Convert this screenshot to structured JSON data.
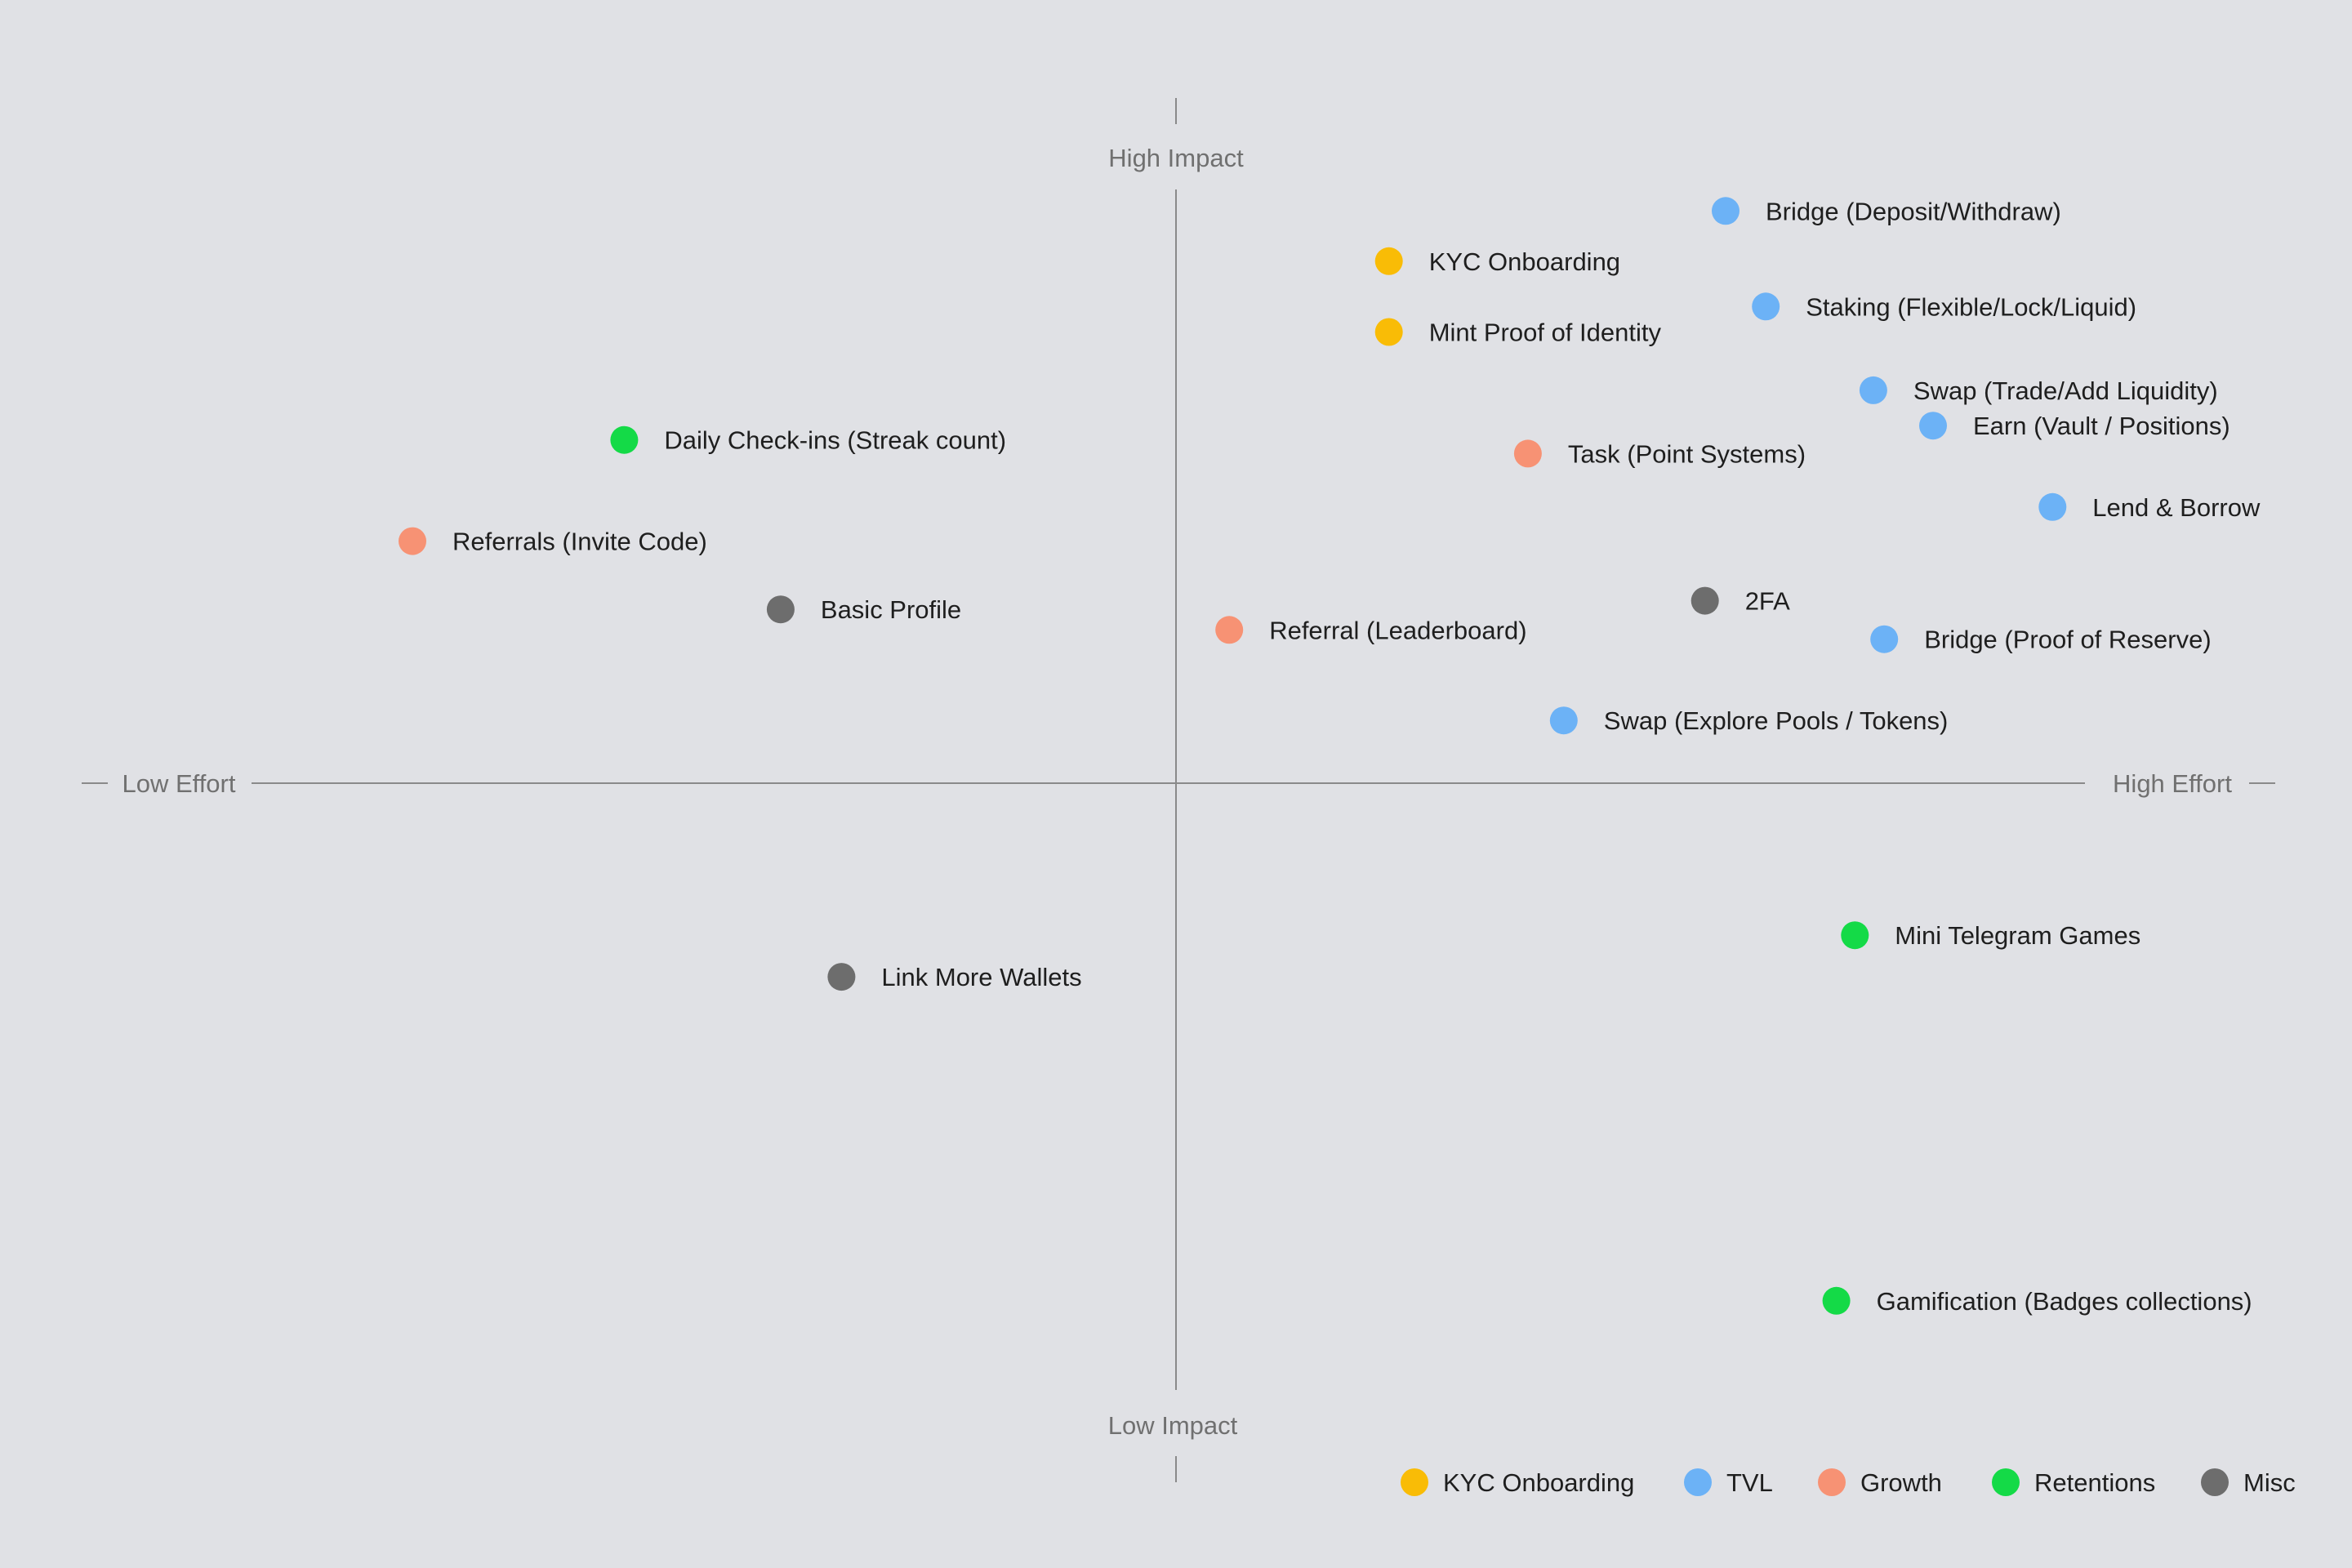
{
  "chart_data": {
    "type": "scatter",
    "title": "",
    "axes": {
      "x_low_label": "Low Effort",
      "x_high_label": "High Effort",
      "y_high_label": "High Impact",
      "y_low_label": "Low Impact",
      "xlim": [
        -100,
        100
      ],
      "ylim": [
        -100,
        100
      ]
    },
    "legend_position": "bottom-right",
    "categories": [
      {
        "key": "kyc",
        "name": "KYC Onboarding",
        "color": "#f9bc06"
      },
      {
        "key": "tvl",
        "name": "TVL",
        "color": "#6cb2f6"
      },
      {
        "key": "growth",
        "name": "Growth",
        "color": "#f79274"
      },
      {
        "key": "retention",
        "name": "Retentions",
        "color": "#14da47"
      },
      {
        "key": "misc",
        "name": "Misc",
        "color": "#6d6d6d"
      }
    ],
    "points": [
      {
        "label": "Bridge (Deposit/Withdraw)",
        "category": "tvl",
        "x": 50.6,
        "y": 92.2
      },
      {
        "label": "KYC Onboarding",
        "category": "kyc",
        "x": 19.6,
        "y": 84.1
      },
      {
        "label": "Staking (Flexible/Lock/Liquid)",
        "category": "tvl",
        "x": 54.3,
        "y": 76.8
      },
      {
        "label": "Mint Proof of Identity",
        "category": "kyc",
        "x": 19.6,
        "y": 72.7
      },
      {
        "label": "Swap (Trade/Add Liquidity)",
        "category": "tvl",
        "x": 64.2,
        "y": 63.3
      },
      {
        "label": "Daily Check-ins (Streak count)",
        "category": "retention",
        "x": -50.8,
        "y": 55.3
      },
      {
        "label": "Earn (Vault / Positions)",
        "category": "tvl",
        "x": 69.7,
        "y": 57.6
      },
      {
        "label": "Task (Point Systems)",
        "category": "growth",
        "x": 32.4,
        "y": 53.1
      },
      {
        "label": "Lend & Borrow",
        "category": "tvl",
        "x": 80.7,
        "y": 44.5
      },
      {
        "label": "Referrals (Invite Code)",
        "category": "growth",
        "x": -70.3,
        "y": 39.0
      },
      {
        "label": "2FA",
        "category": "misc",
        "x": 48.7,
        "y": 29.4
      },
      {
        "label": "Basic Profile",
        "category": "misc",
        "x": -36.4,
        "y": 28.0
      },
      {
        "label": "Referral (Leaderboard)",
        "category": "growth",
        "x": 4.9,
        "y": 24.7
      },
      {
        "label": "Bridge (Proof of Reserve)",
        "category": "tvl",
        "x": 65.2,
        "y": 23.2
      },
      {
        "label": "Swap (Explore Pools / Tokens)",
        "category": "tvl",
        "x": 35.7,
        "y": 10.1
      },
      {
        "label": "Mini Telegram Games",
        "category": "retention",
        "x": 62.5,
        "y": -24.5
      },
      {
        "label": "Link More Wallets",
        "category": "misc",
        "x": -30.8,
        "y": -31.2
      },
      {
        "label": "Gamification (Badges collections)",
        "category": "retention",
        "x": 60.8,
        "y": -83.4
      }
    ]
  }
}
